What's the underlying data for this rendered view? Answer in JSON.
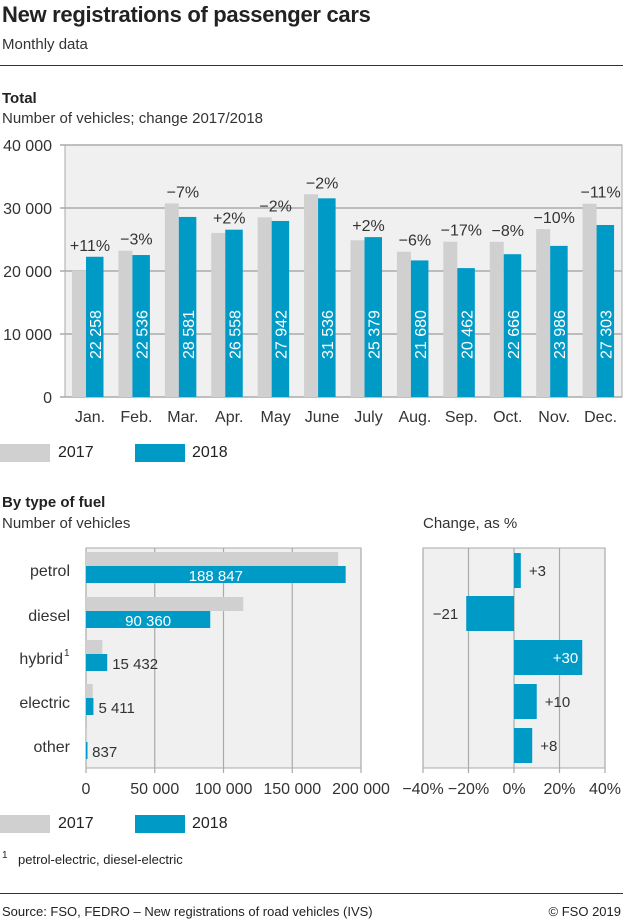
{
  "header": {
    "title": "New registrations of passenger cars",
    "subtitle": "Monthly data"
  },
  "colors": {
    "y2017": "#d0d0d0",
    "y2018": "#009ac7",
    "plot_bg": "#f0f0f0",
    "grid": "#aaaaaa"
  },
  "chart_data": [
    {
      "type": "bar",
      "title": "Total",
      "ylabel": "Number of vehicles; change 2017/2018",
      "ylim": [
        0,
        40000
      ],
      "yticks": [
        0,
        10000,
        20000,
        30000,
        40000
      ],
      "ytick_labels": [
        "0",
        "10 000",
        "20 000",
        "30 000",
        "40 000"
      ],
      "grid": true,
      "categories": [
        "Jan.",
        "Feb.",
        "Mar.",
        "Apr.",
        "May",
        "June",
        "July",
        "Aug.",
        "Sep.",
        "Oct.",
        "Nov.",
        "Dec."
      ],
      "series": [
        {
          "name": "2017",
          "values": [
            20050,
            23230,
            30730,
            26040,
            28510,
            32180,
            24880,
            23060,
            24650,
            24630,
            26650,
            30680
          ]
        },
        {
          "name": "2018",
          "values": [
            22258,
            22536,
            28581,
            26558,
            27942,
            31536,
            25379,
            21680,
            20462,
            22666,
            23986,
            27303
          ],
          "labels": [
            "22 258",
            "22 536",
            "28 581",
            "26 558",
            "27 942",
            "31 536",
            "25 379",
            "21 680",
            "20 462",
            "22 666",
            "23 986",
            "27 303"
          ]
        }
      ],
      "change_labels": [
        "+11%",
        "−3%",
        "−7%",
        "+2%",
        "−2%",
        "−2%",
        "+2%",
        "−6%",
        "−17%",
        "−8%",
        "−10%",
        "−11%"
      ],
      "legend": [
        "2017",
        "2018"
      ],
      "legend_position": "bottom-left"
    },
    {
      "type": "bar",
      "orientation": "horizontal",
      "title": "By type of fuel",
      "xlabel_top": "Number of vehicles",
      "xlim": [
        0,
        200000
      ],
      "xticks": [
        0,
        50000,
        100000,
        150000,
        200000
      ],
      "xtick_labels": [
        "0",
        "50 000",
        "100 000",
        "150 000",
        "200 000"
      ],
      "grid": true,
      "categories": [
        "petrol",
        "diesel",
        "hybrid",
        "electric",
        "other"
      ],
      "category_footnote_marks": [
        "",
        "",
        "1",
        "",
        ""
      ],
      "series": [
        {
          "name": "2017",
          "values": [
            183350,
            114380,
            11870,
            4920,
            775
          ]
        },
        {
          "name": "2018",
          "values": [
            188847,
            90360,
            15432,
            5411,
            837
          ],
          "labels": [
            "188 847",
            "90 360",
            "15 432",
            "5 411",
            "837"
          ]
        }
      ],
      "legend": [
        "2017",
        "2018"
      ],
      "legend_position": "bottom-left"
    },
    {
      "type": "bar",
      "orientation": "horizontal",
      "title": "Change, as %",
      "xlim": [
        -40,
        40
      ],
      "xticks": [
        -40,
        -20,
        0,
        20,
        40
      ],
      "xtick_labels": [
        "−40%",
        "−20%",
        "0%",
        "20%",
        "40%"
      ],
      "grid": true,
      "categories": [
        "petrol",
        "diesel",
        "hybrid",
        "electric",
        "other"
      ],
      "values": [
        3,
        -21,
        30,
        10,
        8
      ],
      "labels": [
        "+3",
        "−21",
        "+30",
        "+10",
        "+8"
      ]
    }
  ],
  "footnote": {
    "mark": "1",
    "text": "petrol-electric, diesel-electric"
  },
  "footer": {
    "source": "Source: FSO, FEDRO – New registrations of road vehicles (IVS)",
    "copyright": "© FSO 2019"
  }
}
